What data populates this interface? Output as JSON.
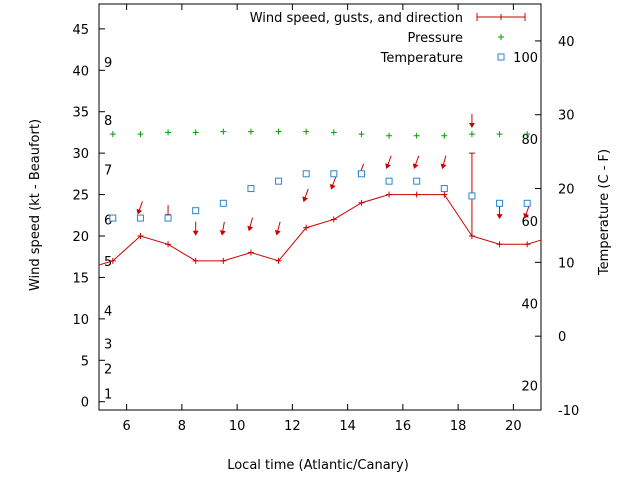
{
  "chart_data": {
    "type": "line",
    "xlabel": "Local time (Atlantic/Canary)",
    "ylabel_left": "Wind speed (kt - Beaufort)",
    "ylabel_right": "Temperature (C - F)",
    "xlim": [
      5,
      21
    ],
    "ylim_left": [
      -1,
      48
    ],
    "ylim_right": [
      -10,
      45
    ],
    "x_ticks": [
      6,
      8,
      10,
      12,
      14,
      16,
      18,
      20
    ],
    "y_ticks_left": [
      0,
      5,
      10,
      15,
      20,
      25,
      30,
      35,
      40,
      45
    ],
    "y_ticks_right": [
      -10,
      0,
      10,
      20,
      30,
      40
    ],
    "beaufort_ticks": [
      {
        "label": "1",
        "kt": 1.0
      },
      {
        "label": "2",
        "kt": 4.0
      },
      {
        "label": "3",
        "kt": 7.0
      },
      {
        "label": "4",
        "kt": 11.0
      },
      {
        "label": "5",
        "kt": 17.0
      },
      {
        "label": "6",
        "kt": 22.0
      },
      {
        "label": "7",
        "kt": 28.0
      },
      {
        "label": "8",
        "kt": 34.0
      },
      {
        "label": "9",
        "kt": 41.0
      }
    ],
    "fahrenheit_ticks": [
      {
        "label": "20",
        "c": -6.7
      },
      {
        "label": "40",
        "c": 4.4
      },
      {
        "label": "60",
        "c": 15.6
      },
      {
        "label": "80",
        "c": 26.7
      },
      {
        "label": "100",
        "c": 37.8
      }
    ],
    "legend": {
      "position": "top-right",
      "entries": [
        "Wind speed, gusts, and direction",
        "Pressure",
        "Temperature"
      ]
    },
    "colors": {
      "wind": "#cc0000",
      "pressure": "#00a000",
      "temperature": "#2a86d0",
      "axis": "#000000"
    },
    "series": [
      {
        "name": "Wind speed, gusts, and direction",
        "x": [
          4.5,
          5.5,
          6.5,
          7.5,
          8.5,
          9.5,
          10.5,
          11.5,
          12.5,
          13.5,
          14.5,
          15.5,
          16.5,
          17.5,
          18.5,
          19.5,
          20.5,
          21.5
        ],
        "values": [
          16,
          17,
          20,
          19,
          17,
          17,
          18,
          17,
          21,
          22,
          24,
          25,
          25,
          25,
          20,
          19,
          19,
          20
        ],
        "gusts": [
          null,
          null,
          null,
          null,
          null,
          null,
          null,
          null,
          null,
          null,
          null,
          null,
          null,
          null,
          30,
          null,
          null,
          null
        ]
      },
      {
        "name": "Pressure",
        "x": [
          5.5,
          6.5,
          7.5,
          8.5,
          9.5,
          10.5,
          11.5,
          12.5,
          13.5,
          14.5,
          15.5,
          16.5,
          17.5,
          18.5,
          19.5,
          20.5
        ],
        "values": [
          32.3,
          32.3,
          32.5,
          32.5,
          32.6,
          32.6,
          32.6,
          32.6,
          32.5,
          32.3,
          32.1,
          32.1,
          32.1,
          32.3,
          32.3,
          32.3
        ]
      },
      {
        "name": "Temperature",
        "x": [
          5.5,
          6.5,
          7.5,
          8.5,
          9.5,
          10.5,
          11.5,
          12.5,
          13.5,
          14.5,
          15.5,
          16.5,
          17.5,
          18.5,
          19.5,
          20.5
        ],
        "values": [
          16,
          16,
          16,
          17,
          18,
          20,
          21,
          22,
          22,
          22,
          21,
          21,
          20,
          19,
          18,
          18
        ]
      }
    ],
    "wind_direction_arrows": [
      {
        "x": 6.5,
        "y": 23.5,
        "angle": 20
      },
      {
        "x": 7.5,
        "y": 23.0,
        "angle": 0
      },
      {
        "x": 8.5,
        "y": 21.0,
        "angle": 0
      },
      {
        "x": 9.5,
        "y": 21.0,
        "angle": 10
      },
      {
        "x": 10.5,
        "y": 21.5,
        "angle": 15
      },
      {
        "x": 11.5,
        "y": 21.0,
        "angle": 15
      },
      {
        "x": 12.5,
        "y": 25.0,
        "angle": 20
      },
      {
        "x": 13.5,
        "y": 26.5,
        "angle": 20
      },
      {
        "x": 14.5,
        "y": 28.0,
        "angle": 20
      },
      {
        "x": 15.5,
        "y": 29.0,
        "angle": 20
      },
      {
        "x": 16.5,
        "y": 29.0,
        "angle": 20
      },
      {
        "x": 17.5,
        "y": 29.0,
        "angle": 15
      },
      {
        "x": 18.5,
        "y": 34.0,
        "angle": 0
      },
      {
        "x": 19.5,
        "y": 23.0,
        "angle": 0
      },
      {
        "x": 20.5,
        "y": 23.0,
        "angle": 20
      }
    ]
  }
}
